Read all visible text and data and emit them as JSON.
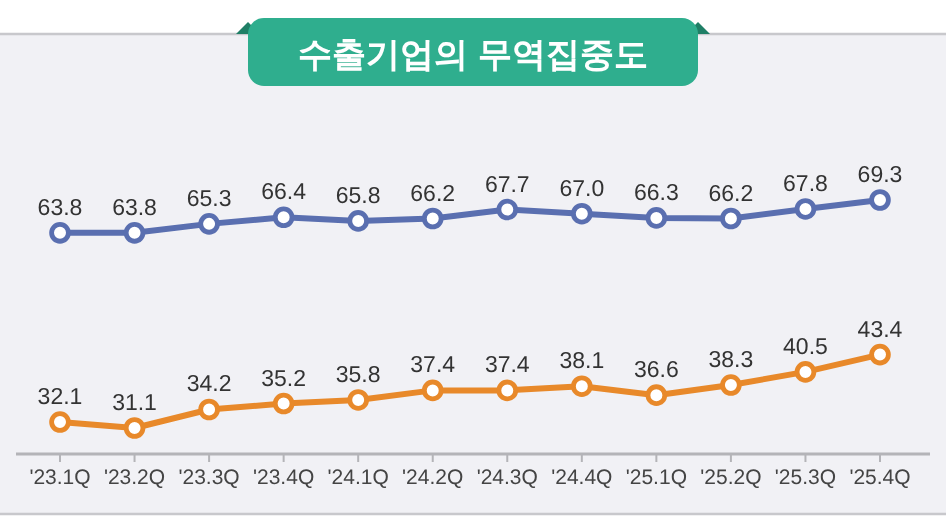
{
  "chart_data": {
    "type": "line",
    "title": "수출기업의 무역집중도",
    "categories": [
      "'23.1Q",
      "'23.2Q",
      "'23.3Q",
      "'23.4Q",
      "'24.1Q",
      "'24.2Q",
      "'24.3Q",
      "'24.4Q",
      "'25.1Q",
      "'25.2Q",
      "'25.3Q",
      "'25.4Q"
    ],
    "series": [
      {
        "color": "#5a6fb0",
        "values": [
          63.8,
          63.8,
          65.3,
          66.4,
          65.8,
          66.2,
          67.7,
          67.0,
          66.3,
          66.2,
          67.8,
          69.3
        ],
        "value_labels": [
          "63.8",
          "63.8",
          "65.3",
          "66.4",
          "65.8",
          "66.2",
          "67.7",
          "67.0",
          "66.3",
          "66.2",
          "67.8",
          "69.3"
        ]
      },
      {
        "color": "#e8892a",
        "values": [
          32.1,
          31.1,
          34.2,
          35.2,
          35.8,
          37.4,
          37.4,
          38.1,
          36.6,
          38.3,
          40.5,
          43.4
        ],
        "value_labels": [
          "32.1",
          "31.1",
          "34.2",
          "35.2",
          "35.8",
          "37.4",
          "37.4",
          "38.1",
          "36.6",
          "38.3",
          "40.5",
          "43.4"
        ]
      }
    ],
    "marker": "circle"
  }
}
